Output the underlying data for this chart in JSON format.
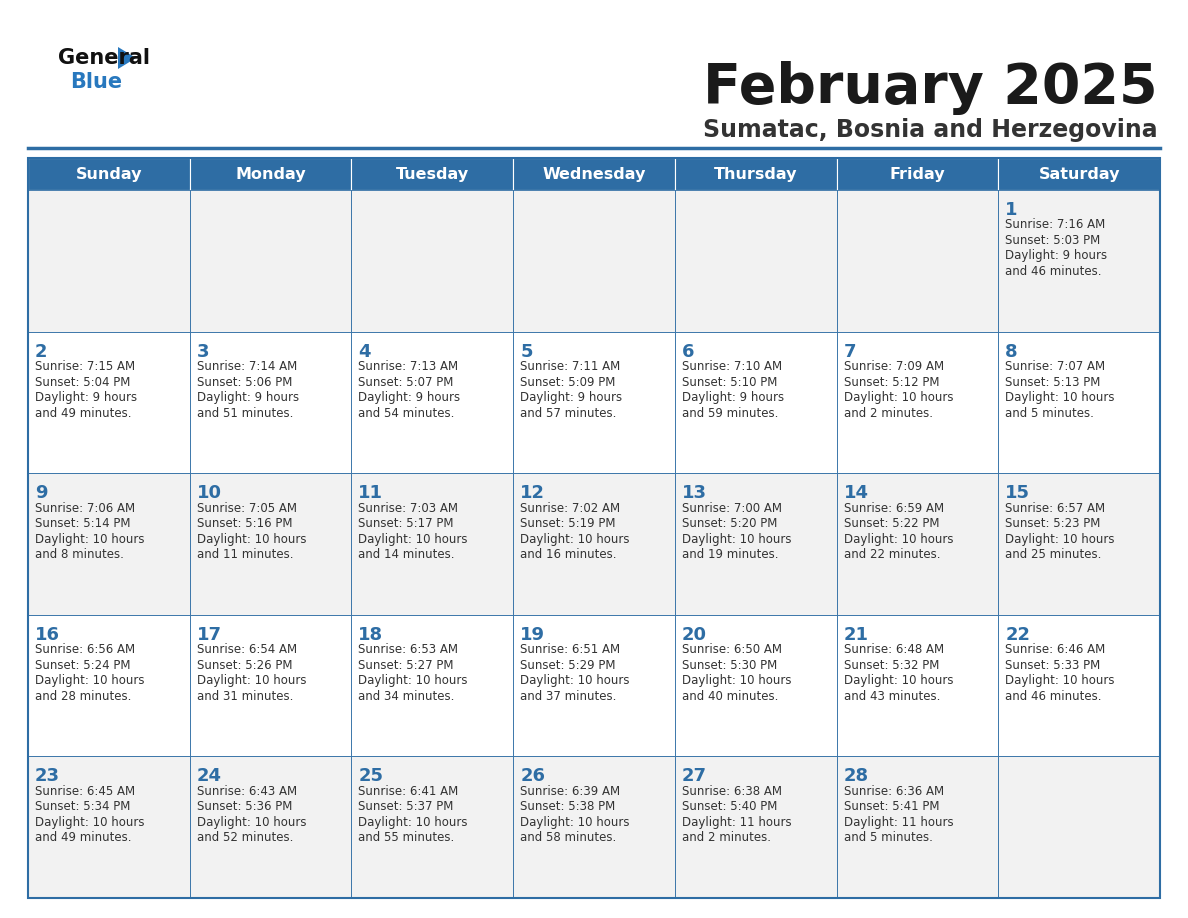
{
  "title": "February 2025",
  "subtitle": "Sumatac, Bosnia and Herzegovina",
  "days_of_week": [
    "Sunday",
    "Monday",
    "Tuesday",
    "Wednesday",
    "Thursday",
    "Friday",
    "Saturday"
  ],
  "header_bg": "#2E6DA4",
  "header_text": "#FFFFFF",
  "cell_bg_odd": "#F2F2F2",
  "cell_bg_even": "#FFFFFF",
  "border_color": "#2E6DA4",
  "title_color": "#1a1a1a",
  "subtitle_color": "#333333",
  "day_num_color": "#2E6DA4",
  "cell_text_color": "#333333",
  "logo_text_color": "#111111",
  "logo_blue_color": "#2878BE",
  "calendar_data": [
    [
      null,
      null,
      null,
      null,
      null,
      null,
      {
        "day": 1,
        "sunrise": "7:16 AM",
        "sunset": "5:03 PM",
        "daylight": "9 hours and 46 minutes."
      }
    ],
    [
      {
        "day": 2,
        "sunrise": "7:15 AM",
        "sunset": "5:04 PM",
        "daylight": "9 hours and 49 minutes."
      },
      {
        "day": 3,
        "sunrise": "7:14 AM",
        "sunset": "5:06 PM",
        "daylight": "9 hours and 51 minutes."
      },
      {
        "day": 4,
        "sunrise": "7:13 AM",
        "sunset": "5:07 PM",
        "daylight": "9 hours and 54 minutes."
      },
      {
        "day": 5,
        "sunrise": "7:11 AM",
        "sunset": "5:09 PM",
        "daylight": "9 hours and 57 minutes."
      },
      {
        "day": 6,
        "sunrise": "7:10 AM",
        "sunset": "5:10 PM",
        "daylight": "9 hours and 59 minutes."
      },
      {
        "day": 7,
        "sunrise": "7:09 AM",
        "sunset": "5:12 PM",
        "daylight": "10 hours and 2 minutes."
      },
      {
        "day": 8,
        "sunrise": "7:07 AM",
        "sunset": "5:13 PM",
        "daylight": "10 hours and 5 minutes."
      }
    ],
    [
      {
        "day": 9,
        "sunrise": "7:06 AM",
        "sunset": "5:14 PM",
        "daylight": "10 hours and 8 minutes."
      },
      {
        "day": 10,
        "sunrise": "7:05 AM",
        "sunset": "5:16 PM",
        "daylight": "10 hours and 11 minutes."
      },
      {
        "day": 11,
        "sunrise": "7:03 AM",
        "sunset": "5:17 PM",
        "daylight": "10 hours and 14 minutes."
      },
      {
        "day": 12,
        "sunrise": "7:02 AM",
        "sunset": "5:19 PM",
        "daylight": "10 hours and 16 minutes."
      },
      {
        "day": 13,
        "sunrise": "7:00 AM",
        "sunset": "5:20 PM",
        "daylight": "10 hours and 19 minutes."
      },
      {
        "day": 14,
        "sunrise": "6:59 AM",
        "sunset": "5:22 PM",
        "daylight": "10 hours and 22 minutes."
      },
      {
        "day": 15,
        "sunrise": "6:57 AM",
        "sunset": "5:23 PM",
        "daylight": "10 hours and 25 minutes."
      }
    ],
    [
      {
        "day": 16,
        "sunrise": "6:56 AM",
        "sunset": "5:24 PM",
        "daylight": "10 hours and 28 minutes."
      },
      {
        "day": 17,
        "sunrise": "6:54 AM",
        "sunset": "5:26 PM",
        "daylight": "10 hours and 31 minutes."
      },
      {
        "day": 18,
        "sunrise": "6:53 AM",
        "sunset": "5:27 PM",
        "daylight": "10 hours and 34 minutes."
      },
      {
        "day": 19,
        "sunrise": "6:51 AM",
        "sunset": "5:29 PM",
        "daylight": "10 hours and 37 minutes."
      },
      {
        "day": 20,
        "sunrise": "6:50 AM",
        "sunset": "5:30 PM",
        "daylight": "10 hours and 40 minutes."
      },
      {
        "day": 21,
        "sunrise": "6:48 AM",
        "sunset": "5:32 PM",
        "daylight": "10 hours and 43 minutes."
      },
      {
        "day": 22,
        "sunrise": "6:46 AM",
        "sunset": "5:33 PM",
        "daylight": "10 hours and 46 minutes."
      }
    ],
    [
      {
        "day": 23,
        "sunrise": "6:45 AM",
        "sunset": "5:34 PM",
        "daylight": "10 hours and 49 minutes."
      },
      {
        "day": 24,
        "sunrise": "6:43 AM",
        "sunset": "5:36 PM",
        "daylight": "10 hours and 52 minutes."
      },
      {
        "day": 25,
        "sunrise": "6:41 AM",
        "sunset": "5:37 PM",
        "daylight": "10 hours and 55 minutes."
      },
      {
        "day": 26,
        "sunrise": "6:39 AM",
        "sunset": "5:38 PM",
        "daylight": "10 hours and 58 minutes."
      },
      {
        "day": 27,
        "sunrise": "6:38 AM",
        "sunset": "5:40 PM",
        "daylight": "11 hours and 2 minutes."
      },
      {
        "day": 28,
        "sunrise": "6:36 AM",
        "sunset": "5:41 PM",
        "daylight": "11 hours and 5 minutes."
      },
      null
    ]
  ]
}
